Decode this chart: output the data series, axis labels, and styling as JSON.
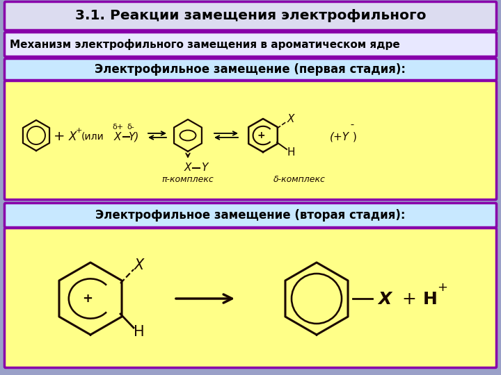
{
  "title": "3.1. Реакции замещения электрофильного",
  "subtitle1": "Механизм электрофильного замещения в ароматическом ядре",
  "label1": "Электрофильное замещение (первая стадия):",
  "label2": "Электрофильное замещение (вторая стадия):",
  "pi_complex": "π-комплекс",
  "sigma_complex": "δ-комплекс",
  "title_bg": "#dcdcf0",
  "subtitle1_bg": "#e8e8ff",
  "label1_bg": "#c8e8ff",
  "label2_bg": "#c8e8ff",
  "reaction_bg": "#ffff88",
  "border_color": "#8800aa",
  "bg_color": "#9aA0c8",
  "text_color": "#000000",
  "draw_color": "#1a0800"
}
